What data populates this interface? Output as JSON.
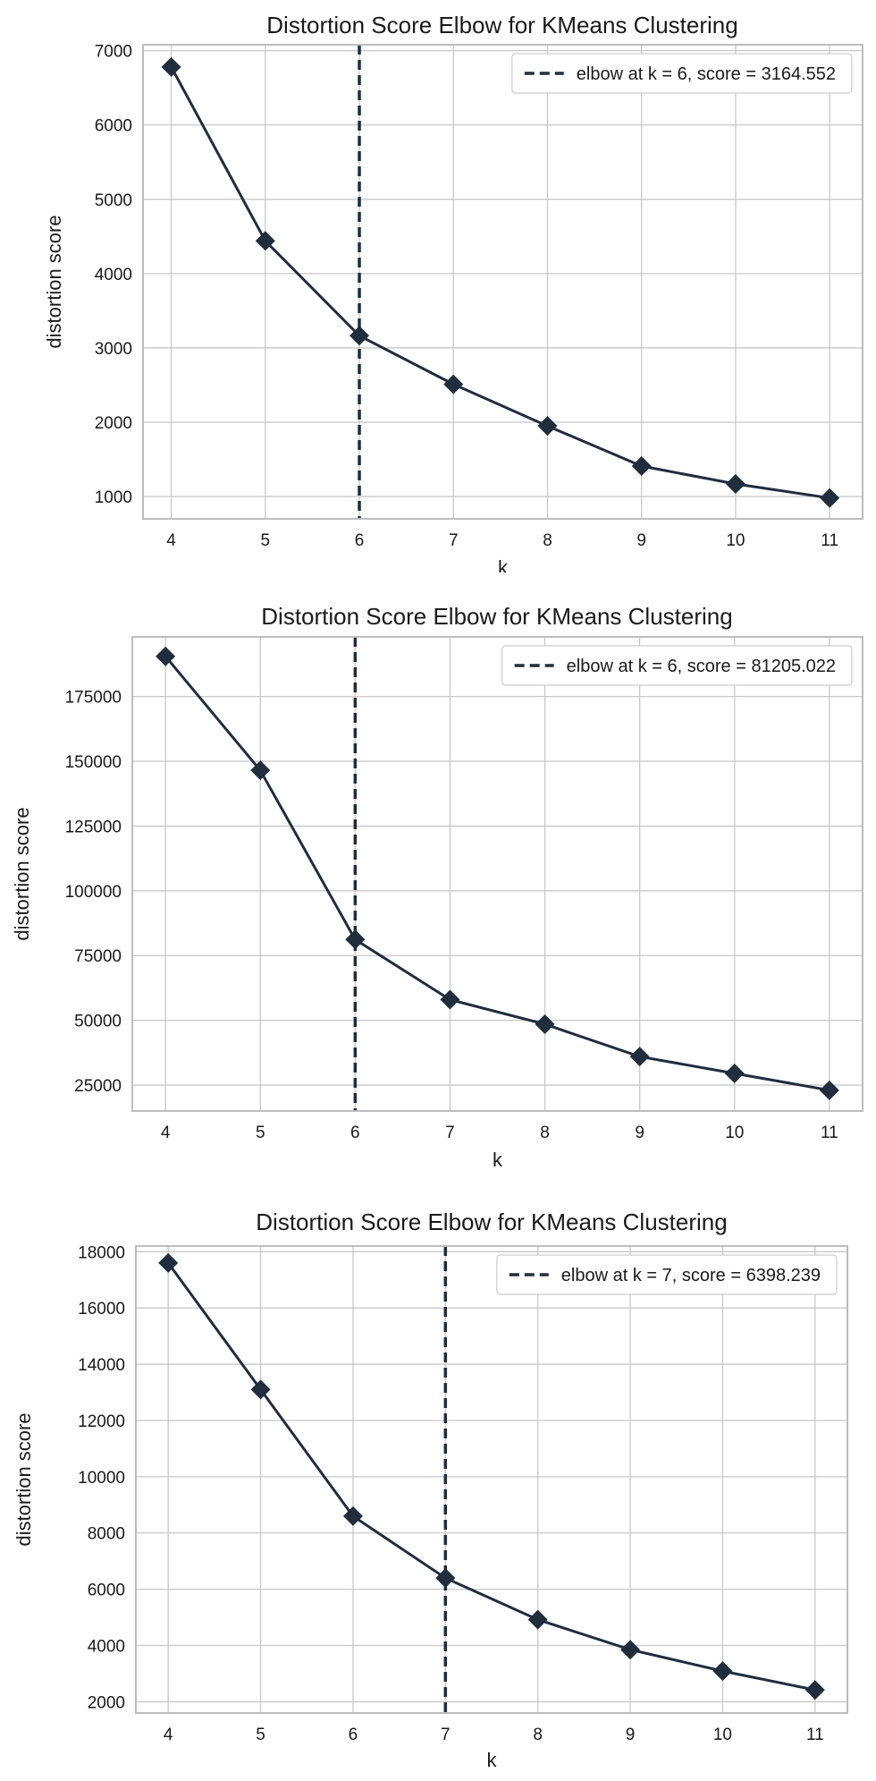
{
  "chart_data": [
    {
      "type": "line",
      "title": "Distortion Score Elbow for KMeans Clustering",
      "xlabel": "k",
      "ylabel": "distortion score",
      "x": [
        4,
        5,
        6,
        7,
        8,
        9,
        10,
        11
      ],
      "xticks": [
        "4",
        "5",
        "6",
        "7",
        "8",
        "9",
        "10",
        "11"
      ],
      "xlim": [
        3.7,
        11.35
      ],
      "yticks": [
        1000,
        2000,
        3000,
        4000,
        5000,
        6000,
        7000
      ],
      "ytick_labels": [
        "1000",
        "2000",
        "3000",
        "4000",
        "5000",
        "6000",
        "7000"
      ],
      "ylim": [
        700,
        7080
      ],
      "series": [
        {
          "values": [
            6780,
            4440,
            3164.552,
            2510,
            1950,
            1410,
            1170,
            980
          ]
        }
      ],
      "elbow_k": 6,
      "legend": {
        "label": "elbow at k = 6, score = 3164.552",
        "position": "top-right"
      },
      "grid": true,
      "colors": {
        "line": "#1f2d3d",
        "grid": "#c8c8c8"
      }
    },
    {
      "type": "line",
      "title": "Distortion Score Elbow for KMeans Clustering",
      "xlabel": "k",
      "ylabel": "distortion score",
      "x": [
        4,
        5,
        6,
        7,
        8,
        9,
        10,
        11
      ],
      "xticks": [
        "4",
        "5",
        "6",
        "7",
        "8",
        "9",
        "10",
        "11"
      ],
      "xlim": [
        3.65,
        11.35
      ],
      "yticks": [
        25000,
        50000,
        75000,
        100000,
        125000,
        150000,
        175000
      ],
      "ytick_labels": [
        "25000",
        "50000",
        "75000",
        "100000",
        "125000",
        "150000",
        "175000"
      ],
      "ylim": [
        15000,
        198000
      ],
      "series": [
        {
          "values": [
            190500,
            146500,
            81205.022,
            58000,
            48500,
            36000,
            29500,
            23000
          ]
        }
      ],
      "elbow_k": 6,
      "legend": {
        "label": "elbow at k = 6, score = 81205.022",
        "position": "top-right"
      },
      "grid": true,
      "colors": {
        "line": "#1f2d3d",
        "grid": "#c8c8c8"
      }
    },
    {
      "type": "line",
      "title": "Distortion Score Elbow for KMeans Clustering",
      "xlabel": "k",
      "ylabel": "distortion score",
      "x": [
        4,
        5,
        6,
        7,
        8,
        9,
        10,
        11
      ],
      "xticks": [
        "4",
        "5",
        "6",
        "7",
        "8",
        "9",
        "10",
        "11"
      ],
      "xlim": [
        3.65,
        11.35
      ],
      "yticks": [
        2000,
        4000,
        6000,
        8000,
        10000,
        12000,
        14000,
        16000,
        18000
      ],
      "ytick_labels": [
        "2000",
        "4000",
        "6000",
        "8000",
        "10000",
        "12000",
        "14000",
        "16000",
        "18000"
      ],
      "ylim": [
        1600,
        18200
      ],
      "series": [
        {
          "values": [
            17600,
            13100,
            8600,
            6398.239,
            4920,
            3850,
            3090,
            2420
          ]
        }
      ],
      "elbow_k": 7,
      "legend": {
        "label": "elbow at k = 7, score = 6398.239",
        "position": "top-right"
      },
      "grid": true,
      "colors": {
        "line": "#1f2d3d",
        "grid": "#c8c8c8"
      }
    }
  ]
}
